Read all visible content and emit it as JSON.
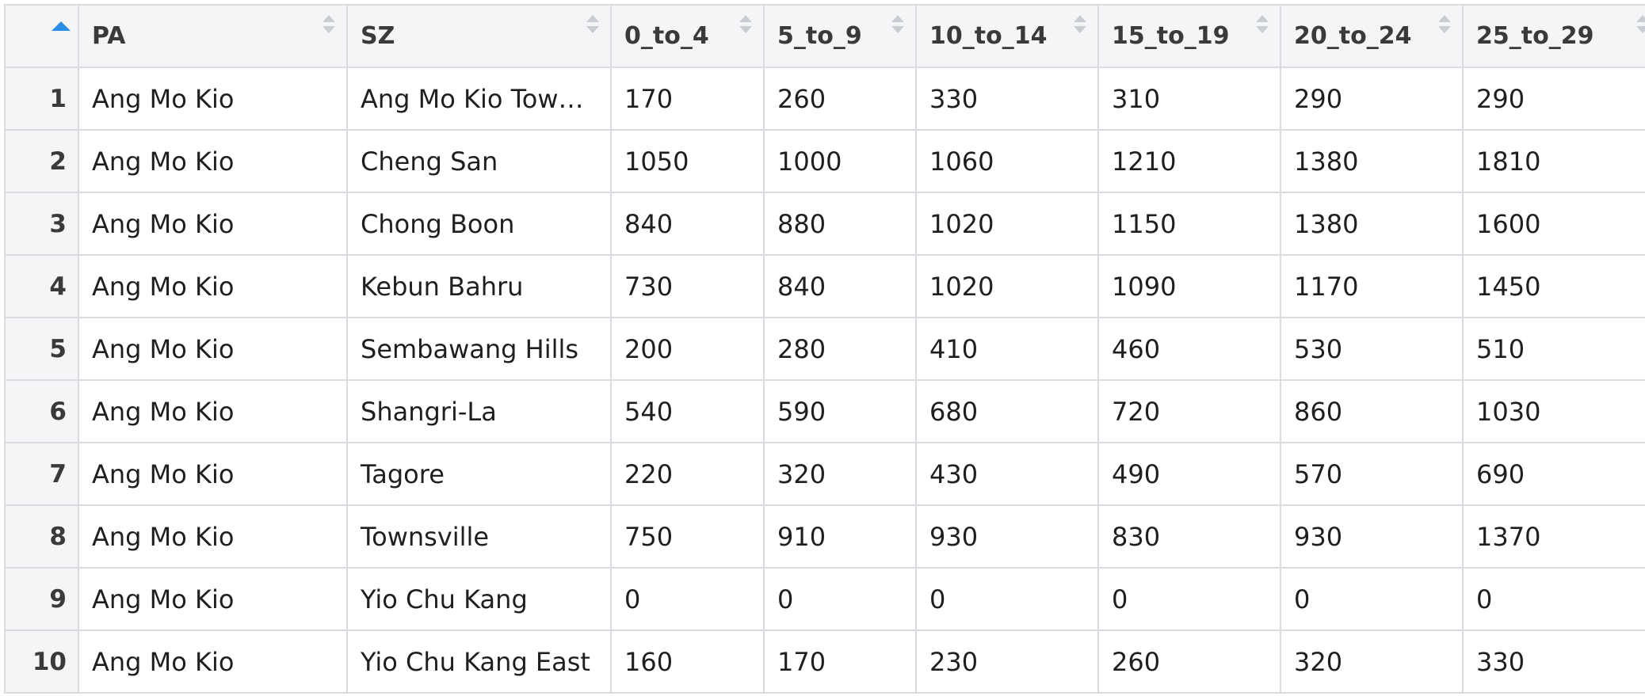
{
  "table": {
    "sort_indicator": {
      "icon": "sort-ascending-icon",
      "color": "#2b8ee6"
    },
    "columns": [
      "PA",
      "SZ",
      "0_to_4",
      "5_to_9",
      "10_to_14",
      "15_to_19",
      "20_to_24",
      "25_to_29"
    ],
    "rows": [
      {
        "num": "1",
        "cells": [
          "Ang Mo Kio",
          "Ang Mo Kio Town ...",
          "170",
          "260",
          "330",
          "310",
          "290",
          "290"
        ]
      },
      {
        "num": "2",
        "cells": [
          "Ang Mo Kio",
          "Cheng San",
          "1050",
          "1000",
          "1060",
          "1210",
          "1380",
          "1810"
        ]
      },
      {
        "num": "3",
        "cells": [
          "Ang Mo Kio",
          "Chong Boon",
          "840",
          "880",
          "1020",
          "1150",
          "1380",
          "1600"
        ]
      },
      {
        "num": "4",
        "cells": [
          "Ang Mo Kio",
          "Kebun Bahru",
          "730",
          "840",
          "1020",
          "1090",
          "1170",
          "1450"
        ]
      },
      {
        "num": "5",
        "cells": [
          "Ang Mo Kio",
          "Sembawang Hills",
          "200",
          "280",
          "410",
          "460",
          "530",
          "510"
        ]
      },
      {
        "num": "6",
        "cells": [
          "Ang Mo Kio",
          "Shangri-La",
          "540",
          "590",
          "680",
          "720",
          "860",
          "1030"
        ]
      },
      {
        "num": "7",
        "cells": [
          "Ang Mo Kio",
          "Tagore",
          "220",
          "320",
          "430",
          "490",
          "570",
          "690"
        ]
      },
      {
        "num": "8",
        "cells": [
          "Ang Mo Kio",
          "Townsville",
          "750",
          "910",
          "930",
          "830",
          "930",
          "1370"
        ]
      },
      {
        "num": "9",
        "cells": [
          "Ang Mo Kio",
          "Yio Chu Kang",
          "0",
          "0",
          "0",
          "0",
          "0",
          "0"
        ]
      },
      {
        "num": "10",
        "cells": [
          "Ang Mo Kio",
          "Yio Chu Kang East",
          "160",
          "170",
          "230",
          "260",
          "320",
          "330"
        ]
      }
    ]
  }
}
